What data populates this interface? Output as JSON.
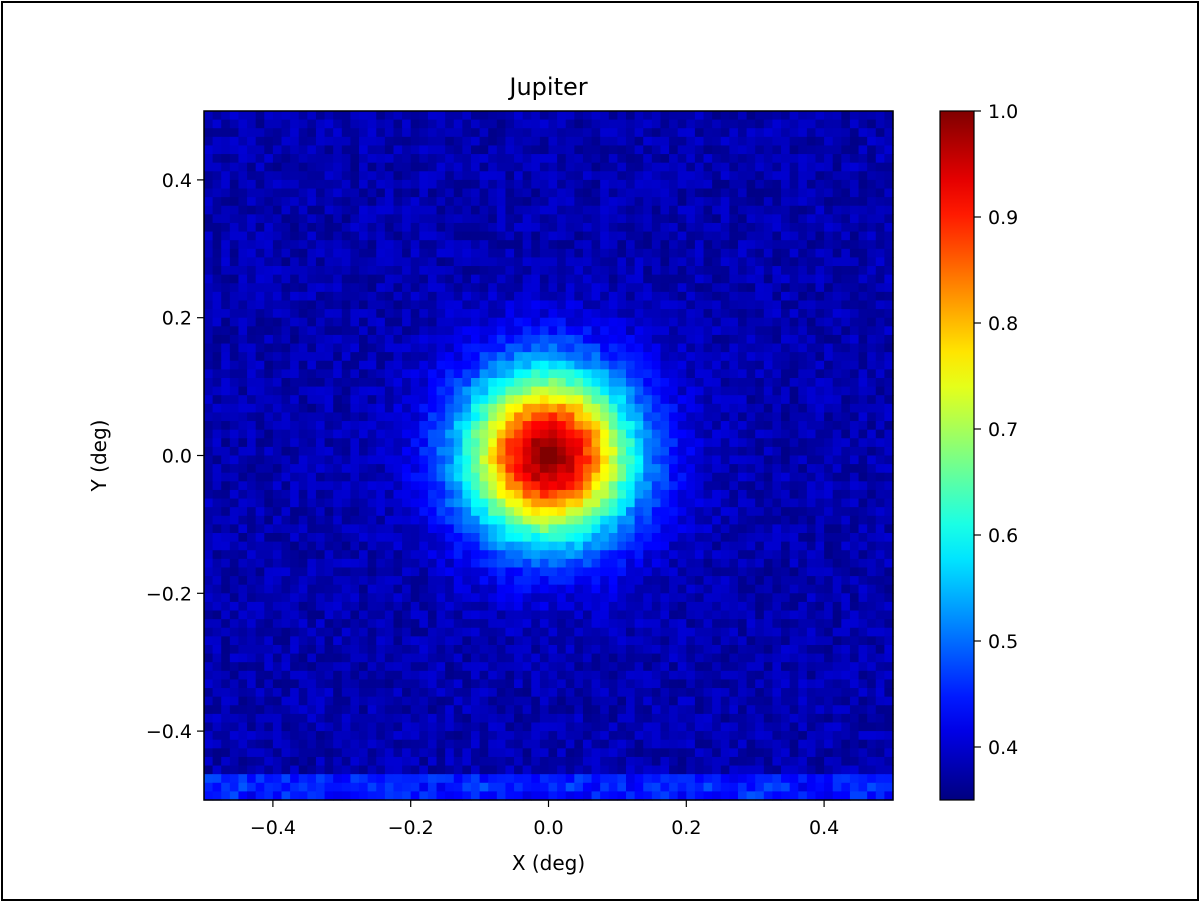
{
  "chart_data": {
    "type": "heatmap",
    "title": "Jupiter",
    "xlabel": "X (deg)",
    "ylabel": "Y (deg)",
    "xlim": [
      -0.5,
      0.5
    ],
    "ylim": [
      -0.5,
      0.5
    ],
    "x_ticks": [
      -0.4,
      -0.2,
      0.0,
      0.2,
      0.4
    ],
    "y_ticks": [
      -0.4,
      -0.2,
      0.0,
      0.2,
      0.4
    ],
    "x_tick_labels": [
      "−0.4",
      "−0.2",
      "0.0",
      "0.2",
      "0.4"
    ],
    "y_tick_labels": [
      "−0.4",
      "−0.2",
      "0.0",
      "0.2",
      "0.4"
    ],
    "colormap": "jet",
    "colorbar": {
      "vmin": 0.35,
      "vmax": 1.0,
      "ticks": [
        0.4,
        0.5,
        0.6,
        0.7,
        0.8,
        0.9,
        1.0
      ],
      "tick_labels": [
        "0.4",
        "0.5",
        "0.6",
        "0.7",
        "0.8",
        "0.9",
        "1.0"
      ]
    },
    "grid": false,
    "source": {
      "peak_x": 0.0,
      "peak_y": 0.0,
      "peak_value": 1.0,
      "sigma_deg": 0.085,
      "background_value": 0.38
    },
    "bins": 80
  }
}
